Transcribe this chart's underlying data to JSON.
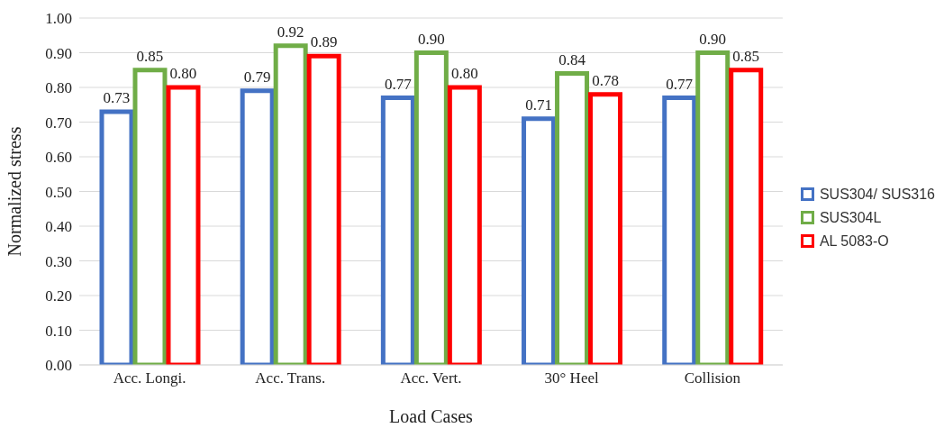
{
  "chart_data": {
    "type": "bar",
    "xlabel": "Load Cases",
    "ylabel": "Normalized stress",
    "categories": [
      "Acc. Longi.",
      "Acc. Trans.",
      "Acc. Vert.",
      "30° Heel",
      "Collision"
    ],
    "series": [
      {
        "name": "SUS304/ SUS316",
        "color": "#4472c4",
        "values": [
          0.73,
          0.79,
          0.77,
          0.71,
          0.77
        ],
        "value_labels": [
          "0.73",
          "0.79",
          "0.77",
          "0.71",
          "0.77"
        ]
      },
      {
        "name": "SUS304L",
        "color": "#70ad47",
        "values": [
          0.85,
          0.92,
          0.9,
          0.84,
          0.9
        ],
        "value_labels": [
          "0.85",
          "0.92",
          "0.90",
          "0.84",
          "0.90"
        ]
      },
      {
        "name": "AL 5083-O",
        "color": "#ff0000",
        "values": [
          0.8,
          0.89,
          0.8,
          0.78,
          0.85
        ],
        "value_labels": [
          "0.80",
          "0.89",
          "0.80",
          "0.78",
          "0.85"
        ]
      }
    ],
    "ylim": [
      0,
      1
    ],
    "yticks": [
      {
        "value": 0,
        "label": "0.00"
      },
      {
        "value": 0.1,
        "label": "0.10"
      },
      {
        "value": 0.2,
        "label": "0.20"
      },
      {
        "value": 0.3,
        "label": "0.30"
      },
      {
        "value": 0.4,
        "label": "0.40"
      },
      {
        "value": 0.5,
        "label": "0.50"
      },
      {
        "value": 0.6,
        "label": "0.60"
      },
      {
        "value": 0.7,
        "label": "0.70"
      },
      {
        "value": 0.8,
        "label": "0.80"
      },
      {
        "value": 0.9,
        "label": "0.90"
      },
      {
        "value": 1,
        "label": "1.00"
      }
    ],
    "grid": "y",
    "legend": "right"
  }
}
